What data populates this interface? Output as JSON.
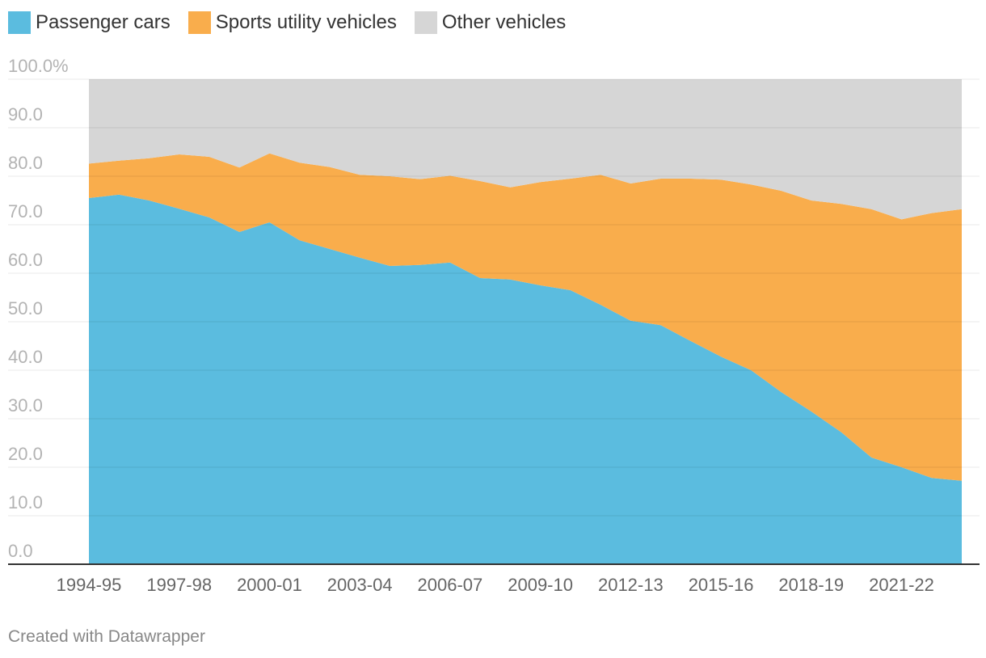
{
  "chart_data": {
    "type": "area",
    "stacked": true,
    "categories": [
      "1994-95",
      "1995-96",
      "1996-97",
      "1997-98",
      "1998-99",
      "1999-00",
      "2000-01",
      "2001-02",
      "2002-03",
      "2003-04",
      "2004-05",
      "2005-06",
      "2006-07",
      "2007-08",
      "2008-09",
      "2009-10",
      "2010-11",
      "2011-12",
      "2012-13",
      "2013-14",
      "2014-15",
      "2015-16",
      "2016-17",
      "2017-18",
      "2018-19",
      "2019-20",
      "2020-21",
      "2021-22",
      "2022-23",
      "2023-24"
    ],
    "tick_labels": [
      "1994-95",
      "1997-98",
      "2000-01",
      "2003-04",
      "2006-07",
      "2009-10",
      "2012-13",
      "2015-16",
      "2018-19",
      "2021-22"
    ],
    "series": [
      {
        "name": "Passenger cars",
        "color": "#5bbcdf",
        "values": [
          75.5,
          76.2,
          75.0,
          73.3,
          71.5,
          68.5,
          70.5,
          66.8,
          65.0,
          63.2,
          61.5,
          61.7,
          62.2,
          59.0,
          58.7,
          57.5,
          56.5,
          53.5,
          50.2,
          49.3,
          46.0,
          42.8,
          40.0,
          35.5,
          31.5,
          27.2,
          22.0,
          20.0,
          17.8,
          17.2
        ]
      },
      {
        "name": "Sports utility vehicles",
        "color": "#f9ad4c",
        "values": [
          7.1,
          7.0,
          8.7,
          11.2,
          12.5,
          13.3,
          14.2,
          16.0,
          16.9,
          17.1,
          18.5,
          17.7,
          17.9,
          20.0,
          19.0,
          21.3,
          23.0,
          26.8,
          28.3,
          30.2,
          33.5,
          36.5,
          38.3,
          41.5,
          43.5,
          47.1,
          51.2,
          51.1,
          54.6,
          56.0
        ]
      },
      {
        "name": "Other vehicles",
        "color": "#d6d6d6",
        "values": [
          17.4,
          16.8,
          16.3,
          15.5,
          16.0,
          18.2,
          15.3,
          17.2,
          18.1,
          19.7,
          20.0,
          20.6,
          19.9,
          21.0,
          22.3,
          21.2,
          20.5,
          19.7,
          21.5,
          20.5,
          20.5,
          20.7,
          21.7,
          23.0,
          25.0,
          25.7,
          26.8,
          28.9,
          27.6,
          26.8
        ]
      }
    ],
    "ylim": [
      0,
      100
    ],
    "yticks": [
      0,
      10,
      20,
      30,
      40,
      50,
      60,
      70,
      80,
      90,
      100
    ],
    "ytick_labels": [
      "0.0",
      "10.0",
      "20.0",
      "30.0",
      "40.0",
      "50.0",
      "60.0",
      "70.0",
      "80.0",
      "90.0",
      "100.0%"
    ],
    "grid": true,
    "legend_position": "top-left"
  },
  "credit": "Created with Datawrapper"
}
